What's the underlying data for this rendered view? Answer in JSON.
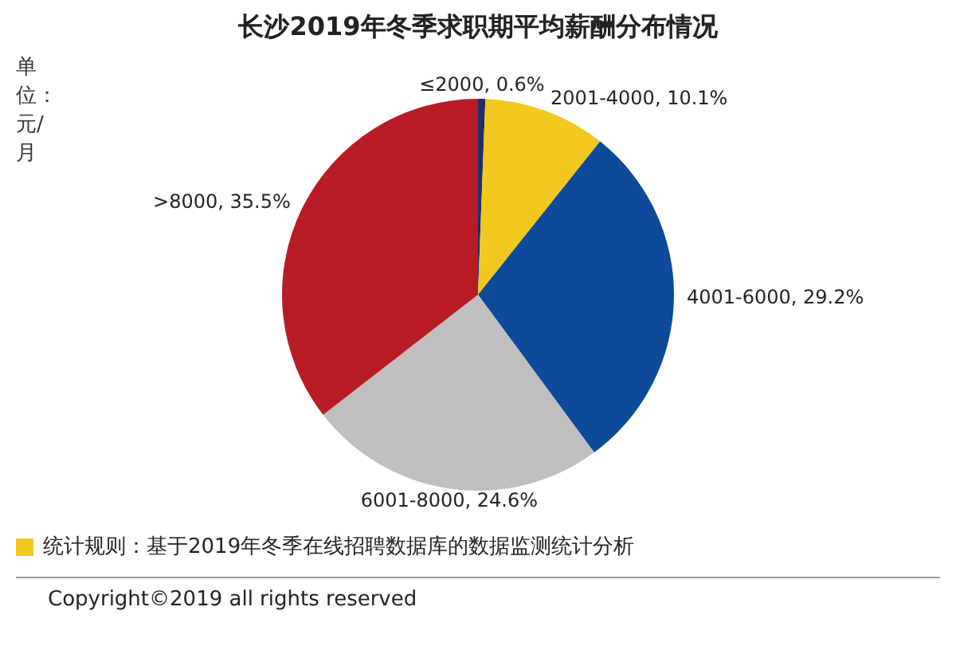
{
  "chart_data": {
    "type": "pie",
    "title": "长沙2019年冬季求职期平均薪酬分布情况",
    "categories": [
      "≤2000",
      "2001-4000",
      "4001-6000",
      "6001-8000",
      ">8000"
    ],
    "values": [
      0.6,
      10.1,
      29.2,
      24.6,
      35.5
    ],
    "colors": [
      "#1f2f66",
      "#f2c81e",
      "#0d4a9a",
      "#bfbfbf",
      "#b71c24"
    ],
    "value_labels": [
      "0.6%",
      "10.1%",
      "29.2%",
      "24.6%",
      "35.5%"
    ],
    "legend": false,
    "annotations": [
      "单位：元/月",
      "统计规则：基于2019年冬季在线招聘数据库的数据监测统计分析",
      "Copyright©2019 all rights reserved"
    ]
  }
}
